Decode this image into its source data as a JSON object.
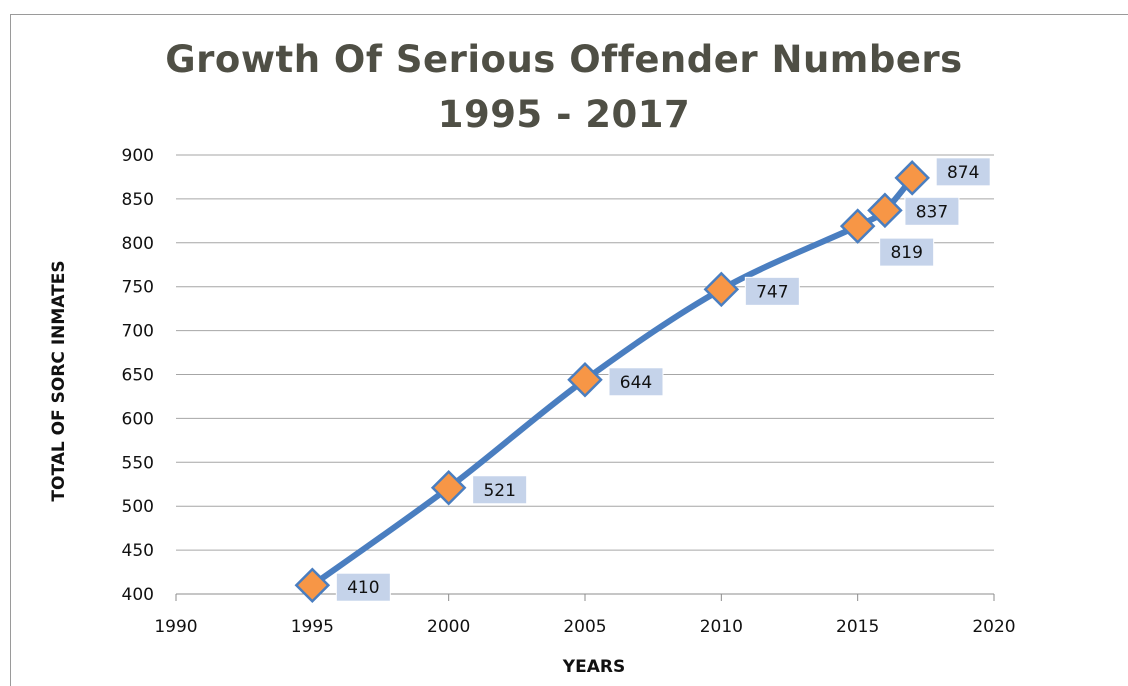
{
  "chart_data": {
    "type": "scatter",
    "title_line1": "Growth Of Serious Offender Numbers",
    "title_line2": "1995 - 2017",
    "xlabel": "YEARS",
    "ylabel": "TOTAL OF SORC INMATES",
    "xlim": [
      1990,
      2020
    ],
    "ylim": [
      400,
      900
    ],
    "x_ticks": [
      1990,
      1995,
      2000,
      2005,
      2010,
      2015,
      2020
    ],
    "y_ticks": [
      400,
      450,
      500,
      550,
      600,
      650,
      700,
      750,
      800,
      850,
      900
    ],
    "grid": "horizontal",
    "series": [
      {
        "x": [
          1995,
          2000,
          2005,
          2010,
          2015,
          2016,
          2017
        ],
        "y": [
          410,
          521,
          644,
          747,
          819,
          837,
          874
        ],
        "labels": [
          "410",
          "521",
          "644",
          "747",
          "819",
          "837",
          "874"
        ]
      }
    ],
    "colors": {
      "line": "#4a7ec0",
      "marker": "#f79646",
      "marker_edge": "#4a7ec0",
      "label_bg": "#c5d3ea",
      "grid": "#a6a6a6",
      "title": "#4f4f45"
    }
  }
}
